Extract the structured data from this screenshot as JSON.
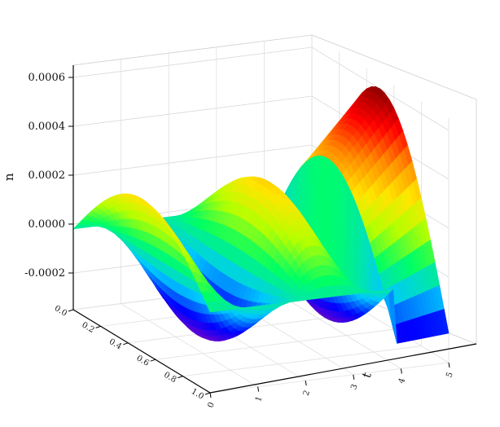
{
  "chart_data": {
    "type": "surface3d",
    "title": "",
    "zlabel": "n",
    "xlabel": "",
    "ylabel": "t",
    "z_ticks": [
      "0.0006",
      "0.0004",
      "0.0002",
      "0.0000",
      "-0.0002"
    ],
    "z_tick_values": [
      0.0006,
      0.0004,
      0.0002,
      0.0,
      -0.0002
    ],
    "zlim": [
      -0.00035,
      0.00065
    ],
    "x_ticks": [
      "0.0",
      "0.2",
      "0.4",
      "0.6",
      "0.8",
      "1.0"
    ],
    "x_tick_values": [
      0.0,
      0.2,
      0.4,
      0.6,
      0.8,
      1.0
    ],
    "xlim": [
      0,
      1
    ],
    "y_ticks": [
      "0",
      "1",
      "2",
      "3",
      "4",
      "5"
    ],
    "y_tick_values": [
      0,
      1,
      2,
      3,
      4,
      5
    ],
    "ylim": [
      0,
      5
    ],
    "colormap": [
      "#7a00c8",
      "#0000ff",
      "#00c8ff",
      "#00ff64",
      "#b4ff00",
      "#ffe600",
      "#ff8c00",
      "#ff0000",
      "#8b0000"
    ],
    "grid": true,
    "contour_lines": true,
    "surface": {
      "description_of_data": "n(x,t) sampled at x = 0.0, 0.2, 0.4, 0.6, 0.8, 1.0 and t = 0..5",
      "x": [
        0.0,
        0.2,
        0.4,
        0.6,
        0.8,
        1.0
      ],
      "t": [
        0.0,
        0.25,
        0.5,
        0.75,
        1.0,
        1.25,
        1.5,
        1.75,
        2.0,
        2.25,
        2.5,
        2.75,
        3.0,
        3.25,
        3.5,
        3.75,
        4.0,
        4.25,
        4.5,
        4.75,
        5.0
      ],
      "peak_max": 0.0006,
      "trough_min": -0.00032
    }
  }
}
